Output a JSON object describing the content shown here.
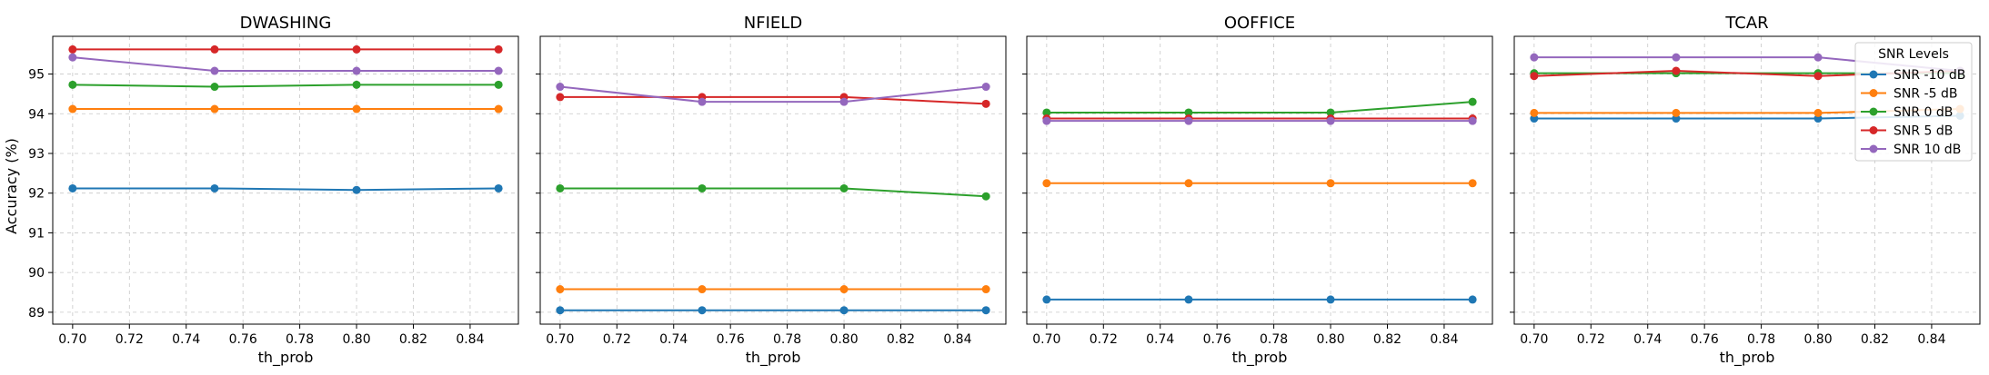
{
  "figure": {
    "ylabel": "Accuracy (%)",
    "legend_title": "SNR Levels"
  },
  "chart_data": [
    {
      "type": "line",
      "title": "DWASHING",
      "xlabel": "th_prob",
      "ylabel": "Accuracy (%)",
      "x": [
        0.7,
        0.75,
        0.8,
        0.85
      ],
      "xlim": [
        0.693,
        0.857
      ],
      "xticks": [
        0.7,
        0.72,
        0.74,
        0.76,
        0.78,
        0.8,
        0.82,
        0.84
      ],
      "xtick_labels": [
        "0.70",
        "0.72",
        "0.74",
        "0.76",
        "0.78",
        "0.80",
        "0.82",
        "0.84"
      ],
      "ylim": [
        88.7,
        95.95
      ],
      "yticks": [
        89,
        90,
        91,
        92,
        93,
        94,
        95
      ],
      "ytick_labels": [
        "89",
        "90",
        "91",
        "92",
        "93",
        "94",
        "95"
      ],
      "grid": true,
      "series": [
        {
          "name": "SNR -10 dB",
          "color": "#1f77b4",
          "values": [
            92.12,
            92.12,
            92.08,
            92.12
          ]
        },
        {
          "name": "SNR -5 dB",
          "color": "#ff7f0e",
          "values": [
            94.12,
            94.12,
            94.12,
            94.12
          ]
        },
        {
          "name": "SNR 0 dB",
          "color": "#2ca02c",
          "values": [
            94.73,
            94.68,
            94.73,
            94.73
          ]
        },
        {
          "name": "SNR 5 dB",
          "color": "#d62728",
          "values": [
            95.62,
            95.62,
            95.62,
            95.62
          ]
        },
        {
          "name": "SNR 10 dB",
          "color": "#9467bd",
          "values": [
            95.42,
            95.08,
            95.08,
            95.08
          ]
        }
      ]
    },
    {
      "type": "line",
      "title": "NFIELD",
      "xlabel": "th_prob",
      "x": [
        0.7,
        0.75,
        0.8,
        0.85
      ],
      "xlim": [
        0.693,
        0.857
      ],
      "xticks": [
        0.7,
        0.72,
        0.74,
        0.76,
        0.78,
        0.8,
        0.82,
        0.84
      ],
      "xtick_labels": [
        "0.70",
        "0.72",
        "0.74",
        "0.76",
        "0.78",
        "0.80",
        "0.82",
        "0.84"
      ],
      "ylim": [
        88.7,
        95.95
      ],
      "grid": true,
      "series": [
        {
          "name": "SNR -10 dB",
          "color": "#1f77b4",
          "values": [
            89.05,
            89.05,
            89.05,
            89.05
          ]
        },
        {
          "name": "SNR -5 dB",
          "color": "#ff7f0e",
          "values": [
            89.58,
            89.58,
            89.58,
            89.58
          ]
        },
        {
          "name": "SNR 0 dB",
          "color": "#2ca02c",
          "values": [
            92.12,
            92.12,
            92.12,
            91.92
          ]
        },
        {
          "name": "SNR 5 dB",
          "color": "#d62728",
          "values": [
            94.42,
            94.42,
            94.42,
            94.25
          ]
        },
        {
          "name": "SNR 10 dB",
          "color": "#9467bd",
          "values": [
            94.68,
            94.3,
            94.3,
            94.68
          ]
        }
      ]
    },
    {
      "type": "line",
      "title": "OOFFICE",
      "xlabel": "th_prob",
      "x": [
        0.7,
        0.75,
        0.8,
        0.85
      ],
      "xlim": [
        0.693,
        0.857
      ],
      "xticks": [
        0.7,
        0.72,
        0.74,
        0.76,
        0.78,
        0.8,
        0.82,
        0.84
      ],
      "xtick_labels": [
        "0.70",
        "0.72",
        "0.74",
        "0.76",
        "0.78",
        "0.80",
        "0.82",
        "0.84"
      ],
      "ylim": [
        88.7,
        95.95
      ],
      "grid": true,
      "series": [
        {
          "name": "SNR -10 dB",
          "color": "#1f77b4",
          "values": [
            89.32,
            89.32,
            89.32,
            89.32
          ]
        },
        {
          "name": "SNR -5 dB",
          "color": "#ff7f0e",
          "values": [
            92.25,
            92.25,
            92.25,
            92.25
          ]
        },
        {
          "name": "SNR 0 dB",
          "color": "#2ca02c",
          "values": [
            94.03,
            94.03,
            94.03,
            94.3
          ]
        },
        {
          "name": "SNR 5 dB",
          "color": "#d62728",
          "values": [
            93.88,
            93.88,
            93.88,
            93.88
          ]
        },
        {
          "name": "SNR 10 dB",
          "color": "#9467bd",
          "values": [
            93.82,
            93.82,
            93.82,
            93.82
          ]
        }
      ]
    },
    {
      "type": "line",
      "title": "TCAR",
      "xlabel": "th_prob",
      "x": [
        0.7,
        0.75,
        0.8,
        0.85
      ],
      "xlim": [
        0.693,
        0.857
      ],
      "xticks": [
        0.7,
        0.72,
        0.74,
        0.76,
        0.78,
        0.8,
        0.82,
        0.84
      ],
      "xtick_labels": [
        "0.70",
        "0.72",
        "0.74",
        "0.76",
        "0.78",
        "0.80",
        "0.82",
        "0.84"
      ],
      "ylim": [
        88.7,
        95.95
      ],
      "grid": true,
      "legend": "top-right",
      "series": [
        {
          "name": "SNR -10 dB",
          "color": "#1f77b4",
          "values": [
            93.88,
            93.88,
            93.88,
            93.95
          ]
        },
        {
          "name": "SNR -5 dB",
          "color": "#ff7f0e",
          "values": [
            94.02,
            94.02,
            94.02,
            94.12
          ]
        },
        {
          "name": "SNR 0 dB",
          "color": "#2ca02c",
          "values": [
            95.02,
            95.02,
            95.02,
            95.02
          ]
        },
        {
          "name": "SNR 5 dB",
          "color": "#d62728",
          "values": [
            94.95,
            95.08,
            94.95,
            95.08
          ]
        },
        {
          "name": "SNR 10 dB",
          "color": "#9467bd",
          "values": [
            95.42,
            95.42,
            95.42,
            95.08
          ]
        }
      ]
    }
  ]
}
